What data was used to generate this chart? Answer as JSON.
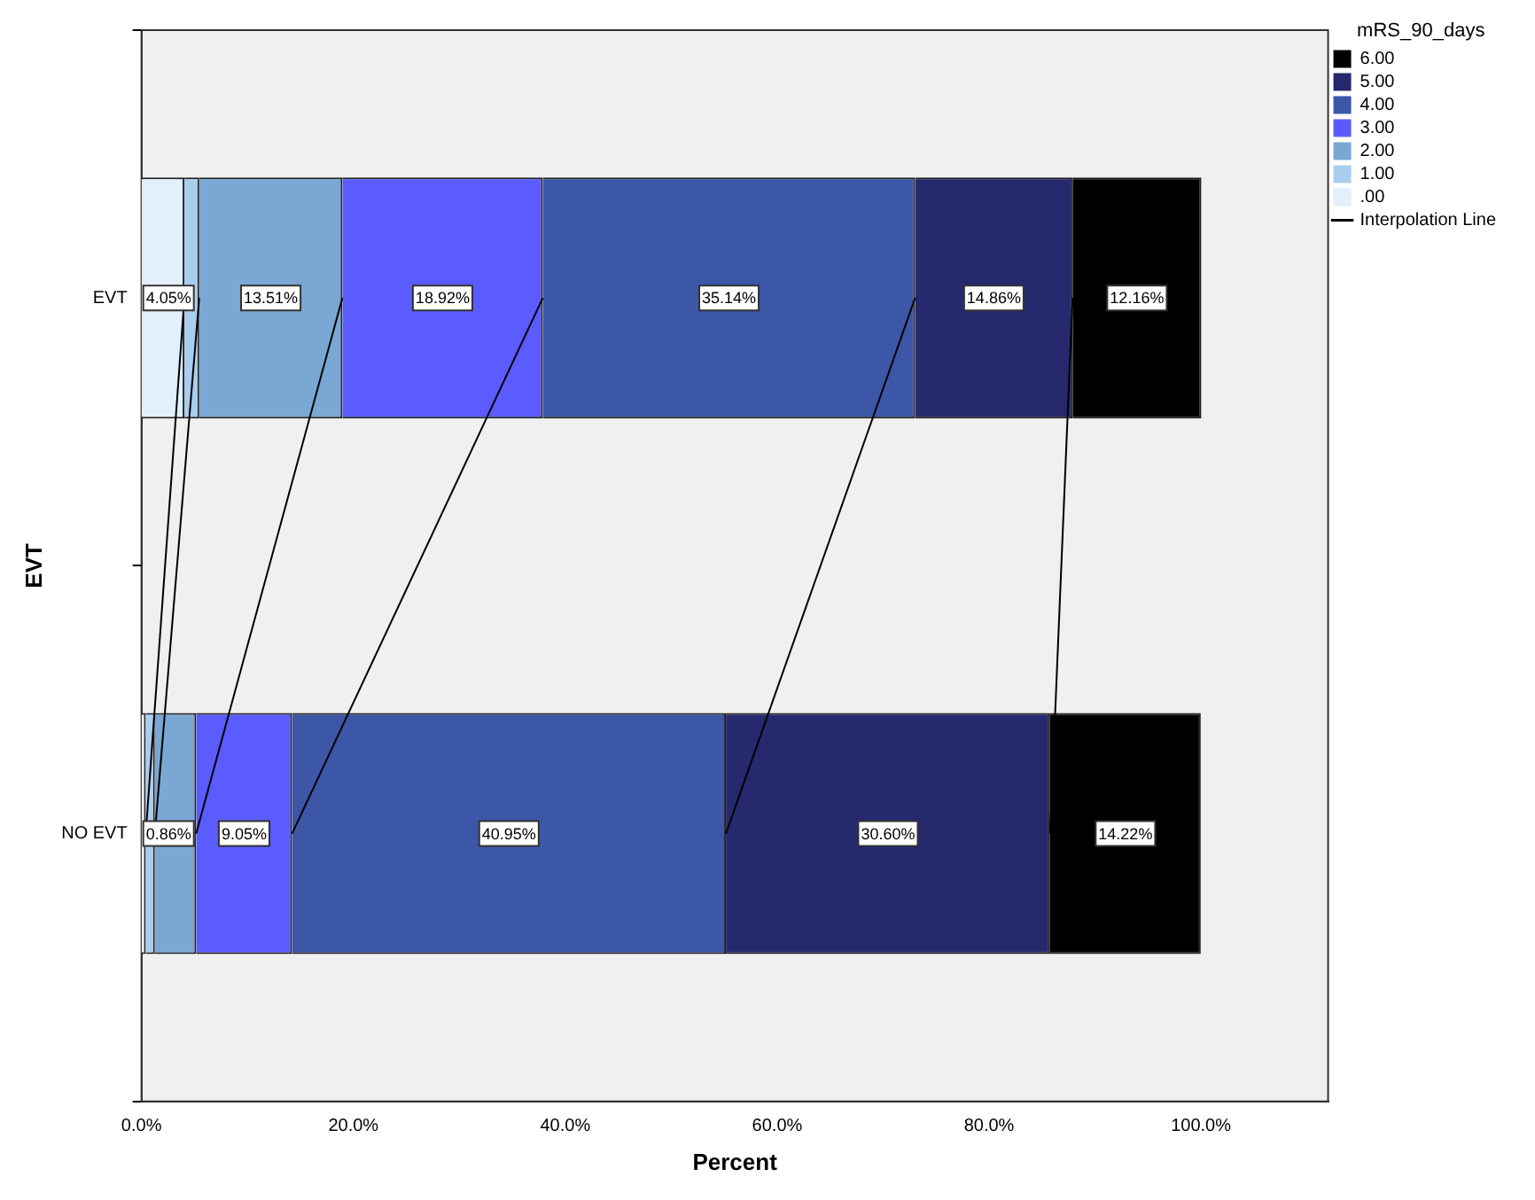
{
  "chart_data": {
    "type": "bar",
    "orientation": "horizontal",
    "stacked": true,
    "xlabel": "Percent",
    "ylabel": "EVT",
    "legend_title": "mRS_90_days",
    "legend": "top right",
    "grid": false,
    "categories": [
      "EVT",
      "NO EVT"
    ],
    "xlim": [
      0,
      112
    ],
    "xticks": [
      {
        "value": 0,
        "label": "0.0%"
      },
      {
        "value": 20,
        "label": "20.0%"
      },
      {
        "value": 40,
        "label": "40.0%"
      },
      {
        "value": 60,
        "label": "60.0%"
      },
      {
        "value": 80,
        "label": "80.0%"
      },
      {
        "value": 100,
        "label": "100.0%"
      }
    ],
    "series": [
      {
        "name": ".00",
        "color": "#e3effb",
        "values": [
          4.05,
          0.4
        ],
        "value_labels": [
          "4.05%",
          null
        ]
      },
      {
        "name": "1.00",
        "color": "#a9cdee",
        "values": [
          1.4,
          0.86
        ],
        "value_labels": [
          null,
          "0.86%"
        ]
      },
      {
        "name": "2.00",
        "color": "#7aa7d4",
        "values": [
          13.51,
          3.9
        ],
        "value_labels": [
          "13.51%",
          null
        ]
      },
      {
        "name": "3.00",
        "color": "#5a5cff",
        "values": [
          18.92,
          9.05
        ],
        "value_labels": [
          "18.92%",
          "9.05%"
        ]
      },
      {
        "name": "4.00",
        "color": "#3c56a8",
        "values": [
          35.14,
          40.95
        ],
        "value_labels": [
          "35.14%",
          "40.95%"
        ]
      },
      {
        "name": "5.00",
        "color": "#26296e",
        "values": [
          14.86,
          30.6
        ],
        "value_labels": [
          "14.86%",
          "30.60%"
        ]
      },
      {
        "name": "6.00",
        "color": "#000000",
        "values": [
          12.16,
          14.22
        ],
        "value_labels": [
          "12.16%",
          "14.22%"
        ]
      }
    ],
    "annotations": [
      "Interpolation Line"
    ]
  }
}
